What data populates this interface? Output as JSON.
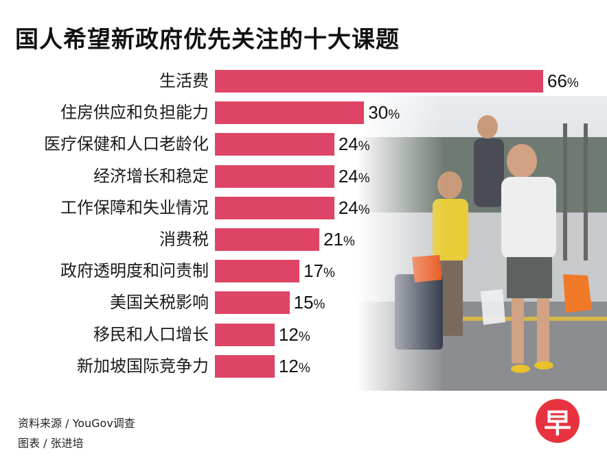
{
  "title": "国人希望新政府优先关注的十大课题",
  "chart_data": {
    "type": "bar",
    "orientation": "horizontal",
    "categories": [
      "生活费",
      "住房供应和负担能力",
      "医疗保健和人口老龄化",
      "经济增长和稳定",
      "工作保障和失业情况",
      "消费税",
      "政府透明度和问责制",
      "美国关税影响",
      "移民和人口增长",
      "新加坡国际竞争力"
    ],
    "values": [
      66,
      30,
      24,
      24,
      24,
      21,
      17,
      15,
      12,
      12
    ],
    "value_labels": [
      "66",
      "30",
      "24",
      "24",
      "24",
      "21",
      "17",
      "15",
      "12",
      "12"
    ],
    "unit": "%",
    "bar_color": "#de4466"
  },
  "footer": {
    "source": "资料来源 / YouGov调查",
    "credit": "图表 / 张进培"
  },
  "logo": {
    "char": "早",
    "color": "#e8323f"
  }
}
